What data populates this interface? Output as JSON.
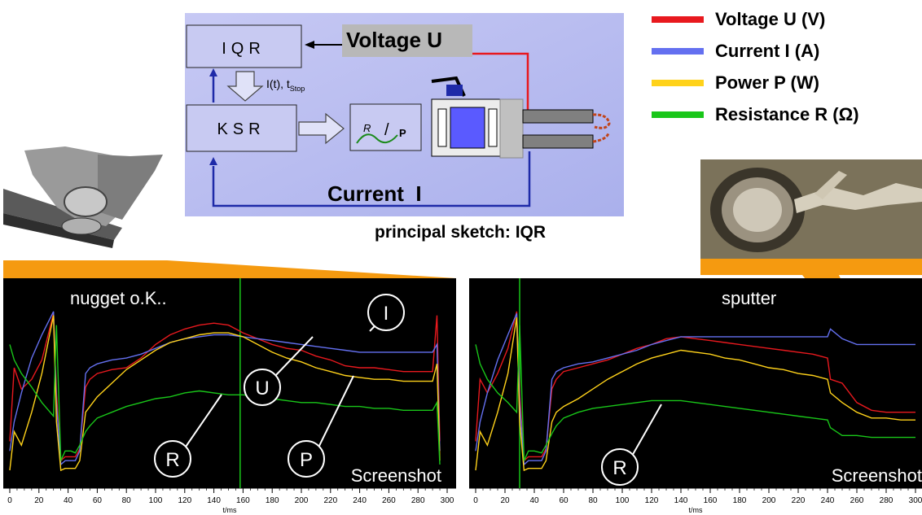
{
  "sketch": {
    "iqr_label": "IQR",
    "ksr_label": "KSR",
    "voltage_label": "Voltage U",
    "current_label": "Current  I",
    "signal_label": "I(t), t",
    "signal_sub": "Stop",
    "rp_label_r": "R",
    "rp_label_slash": "/",
    "rp_label_p": "P",
    "caption": "principal sketch: IQR"
  },
  "legend": {
    "items": [
      {
        "label": "Voltage U (V)",
        "color": "#e8191e"
      },
      {
        "label": "Current I (A)",
        "color": "#6470f0"
      },
      {
        "label": "Power P (W)",
        "color": "#ffd21a"
      },
      {
        "label": "Resistance R (Ω)",
        "color": "#19c619"
      }
    ]
  },
  "colors": {
    "accent_orange": "#f59a10",
    "plot_bg": "#000000",
    "marker_line": "#19c619"
  },
  "chart_data": [
    {
      "type": "line",
      "title": "nugget o.K..",
      "watermark": "Screenshot",
      "xlabel": "t/ms",
      "xlim": [
        0,
        300
      ],
      "xticks": [
        "0",
        "20",
        "40",
        "60",
        "80",
        "100",
        "120",
        "140",
        "160",
        "180",
        "200",
        "220",
        "240",
        "260",
        "280",
        "300"
      ],
      "vertical_marker_x": 158,
      "callouts": [
        "I",
        "U",
        "R",
        "P"
      ],
      "x": [
        0,
        3,
        8,
        15,
        22,
        30,
        32,
        35,
        38,
        42,
        45,
        48,
        52,
        55,
        60,
        70,
        80,
        90,
        100,
        110,
        120,
        130,
        140,
        150,
        160,
        170,
        180,
        190,
        200,
        210,
        220,
        230,
        240,
        250,
        260,
        270,
        280,
        290,
        293,
        295
      ],
      "series": [
        {
          "name": "U",
          "color": "#e8191e",
          "values": [
            20,
            58,
            47,
            52,
            62,
            86,
            45,
            10,
            12,
            12,
            12,
            16,
            48,
            52,
            55,
            57,
            58,
            63,
            70,
            75,
            78,
            80,
            81,
            80,
            76,
            73,
            70,
            68,
            67,
            64,
            62,
            59,
            58,
            58,
            57,
            56,
            56,
            56,
            85,
            20
          ]
        },
        {
          "name": "I",
          "color": "#6470f0",
          "values": [
            15,
            30,
            45,
            63,
            75,
            87,
            40,
            8,
            10,
            10,
            10,
            15,
            55,
            58,
            60,
            62,
            63,
            65,
            68,
            71,
            73,
            74,
            75,
            75,
            74,
            73,
            72,
            71,
            70,
            69,
            68,
            67,
            66,
            66,
            66,
            66,
            66,
            66,
            70,
            15
          ]
        },
        {
          "name": "P",
          "color": "#ffd21a",
          "values": [
            5,
            25,
            18,
            35,
            55,
            85,
            30,
            5,
            6,
            6,
            6,
            10,
            35,
            38,
            43,
            50,
            57,
            62,
            67,
            71,
            73,
            75,
            76,
            76,
            74,
            70,
            66,
            63,
            61,
            58,
            56,
            54,
            53,
            52,
            52,
            51,
            51,
            51,
            60,
            10
          ]
        },
        {
          "name": "R",
          "color": "#19c619",
          "values": [
            70,
            62,
            55,
            48,
            40,
            33,
            80,
            10,
            15,
            15,
            14,
            18,
            25,
            28,
            32,
            35,
            38,
            40,
            42,
            43,
            45,
            46,
            45,
            44,
            44,
            43,
            42,
            41,
            40,
            40,
            39,
            38,
            38,
            37,
            37,
            36,
            36,
            36,
            40,
            8
          ]
        }
      ]
    },
    {
      "type": "line",
      "title": "sputter",
      "watermark": "Screenshot",
      "xlabel": "t/ms",
      "xlim": [
        0,
        300
      ],
      "xticks": [
        "0",
        "20",
        "40",
        "60",
        "80",
        "100",
        "120",
        "140",
        "160",
        "180",
        "200",
        "220",
        "240",
        "260",
        "280",
        "300"
      ],
      "vertical_marker_x": 30,
      "callouts": [
        "R"
      ],
      "x": [
        0,
        3,
        8,
        15,
        22,
        28,
        30,
        33,
        36,
        40,
        45,
        48,
        52,
        55,
        60,
        70,
        80,
        90,
        100,
        110,
        120,
        130,
        140,
        150,
        160,
        170,
        180,
        190,
        200,
        210,
        220,
        230,
        240,
        242,
        250,
        260,
        270,
        280,
        290,
        300
      ],
      "series": [
        {
          "name": "U",
          "color": "#e8191e",
          "values": [
            20,
            52,
            45,
            55,
            68,
            87,
            45,
            10,
            12,
            12,
            12,
            16,
            47,
            52,
            56,
            58,
            60,
            62,
            65,
            68,
            70,
            73,
            74,
            73,
            72,
            71,
            70,
            69,
            68,
            67,
            66,
            65,
            63,
            52,
            50,
            40,
            36,
            35,
            35,
            35
          ]
        },
        {
          "name": "I",
          "color": "#6470f0",
          "values": [
            15,
            30,
            45,
            62,
            75,
            86,
            40,
            8,
            10,
            10,
            10,
            15,
            52,
            56,
            58,
            60,
            61,
            63,
            65,
            67,
            70,
            72,
            74,
            74,
            74,
            74,
            74,
            74,
            74,
            74,
            74,
            74,
            74,
            78,
            73,
            70,
            70,
            70,
            70,
            70
          ]
        },
        {
          "name": "P",
          "color": "#ffd21a",
          "values": [
            5,
            25,
            18,
            35,
            55,
            84,
            30,
            5,
            6,
            6,
            6,
            10,
            30,
            35,
            38,
            42,
            47,
            52,
            56,
            60,
            63,
            65,
            67,
            66,
            65,
            63,
            62,
            60,
            58,
            57,
            55,
            54,
            52,
            45,
            40,
            35,
            32,
            32,
            31,
            31
          ]
        },
        {
          "name": "R",
          "color": "#19c619",
          "values": [
            70,
            60,
            52,
            45,
            40,
            35,
            80,
            10,
            15,
            15,
            14,
            18,
            24,
            28,
            32,
            35,
            37,
            38,
            39,
            40,
            41,
            41,
            41,
            40,
            39,
            38,
            37,
            36,
            35,
            34,
            33,
            32,
            31,
            27,
            23,
            23,
            22,
            22,
            22,
            22
          ]
        }
      ]
    }
  ]
}
